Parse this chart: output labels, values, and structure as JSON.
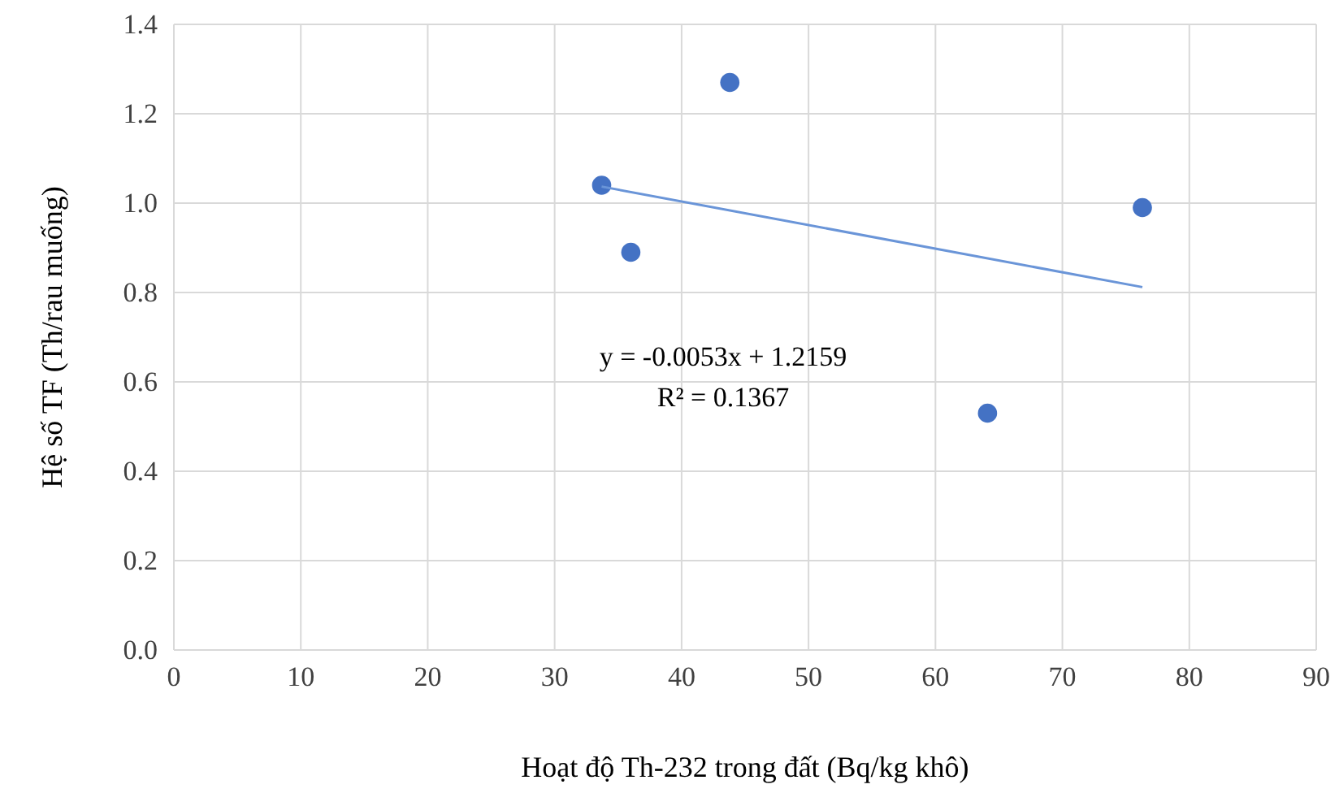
{
  "chart_data": {
    "type": "scatter",
    "xlabel": "Hoạt độ Th-232 trong đất (Bq/kg khô)",
    "ylabel": "Hệ số TF (Th/rau muống)",
    "xlim": [
      0,
      90
    ],
    "xticks": [
      0,
      10,
      20,
      30,
      40,
      50,
      60,
      70,
      80,
      90
    ],
    "ylim": [
      0,
      1.4
    ],
    "yticks": [
      {
        "value": 0,
        "label": "0.0"
      },
      {
        "value": 0.2,
        "label": "0.2"
      },
      {
        "value": 0.4,
        "label": "0.4"
      },
      {
        "value": 0.6,
        "label": "0.6"
      },
      {
        "value": 0.8,
        "label": "0.8"
      },
      {
        "value": 1,
        "label": "1.0"
      },
      {
        "value": 1.2,
        "label": "1.2"
      },
      {
        "value": 1.4,
        "label": "1.4"
      }
    ],
    "grid": true,
    "marker": "circle",
    "series": [
      {
        "color": "#4472c4",
        "x": [
          33.7,
          36.0,
          43.8,
          64.1,
          76.3
        ],
        "values": [
          1.04,
          0.89,
          1.27,
          0.53,
          0.99
        ]
      },
      {
        "type": "line",
        "color": "#6a95d8",
        "marker": "none",
        "line_style": "solid",
        "x": [
          33.7,
          76.3
        ],
        "values": [
          1.037,
          0.812
        ]
      }
    ],
    "annotations": [
      "y = -0.0053x + 1.2159",
      "R² = 0.1367"
    ]
  }
}
